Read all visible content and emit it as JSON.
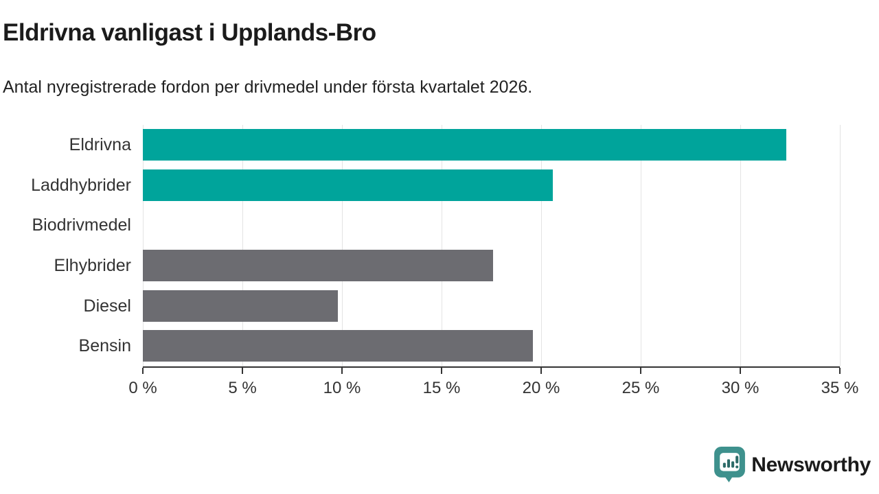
{
  "header": {
    "title": "Eldrivna vanligast i Upplands-Bro",
    "subtitle": "Antal nyregistrerade fordon per drivmedel under första kvartalet 2026."
  },
  "chart_data": {
    "type": "bar",
    "orientation": "horizontal",
    "title": "Eldrivna vanligast i Upplands-Bro",
    "subtitle": "Antal nyregistrerade fordon per drivmedel under första kvartalet 2026.",
    "categories": [
      "Eldrivna",
      "Laddhybrider",
      "Biodrivmedel",
      "Elhybrider",
      "Diesel",
      "Bensin"
    ],
    "values": [
      32.3,
      20.6,
      0,
      17.6,
      9.8,
      19.6
    ],
    "unit": "%",
    "bar_colors": [
      "#00a49b",
      "#00a49b",
      "#6c6c71",
      "#6c6c71",
      "#6c6c71",
      "#6c6c71"
    ],
    "xlim": [
      0,
      35
    ],
    "x_ticks": [
      0,
      5,
      10,
      15,
      20,
      25,
      30,
      35
    ],
    "x_tick_labels": [
      "0 %",
      "5 %",
      "10 %",
      "15 %",
      "20 %",
      "25 %",
      "30 %",
      "35 %"
    ],
    "grid": "vertical-gridlines-on",
    "legend": "none"
  },
  "colors": {
    "highlight_bar": "#00a49b",
    "default_bar": "#6c6c71",
    "axis": "#333333",
    "gridline": "#e3e3e3",
    "logo": "#3e918d",
    "logo_glyph": "#2d6b68"
  },
  "branding": {
    "logo_text": "Newsworthy"
  }
}
